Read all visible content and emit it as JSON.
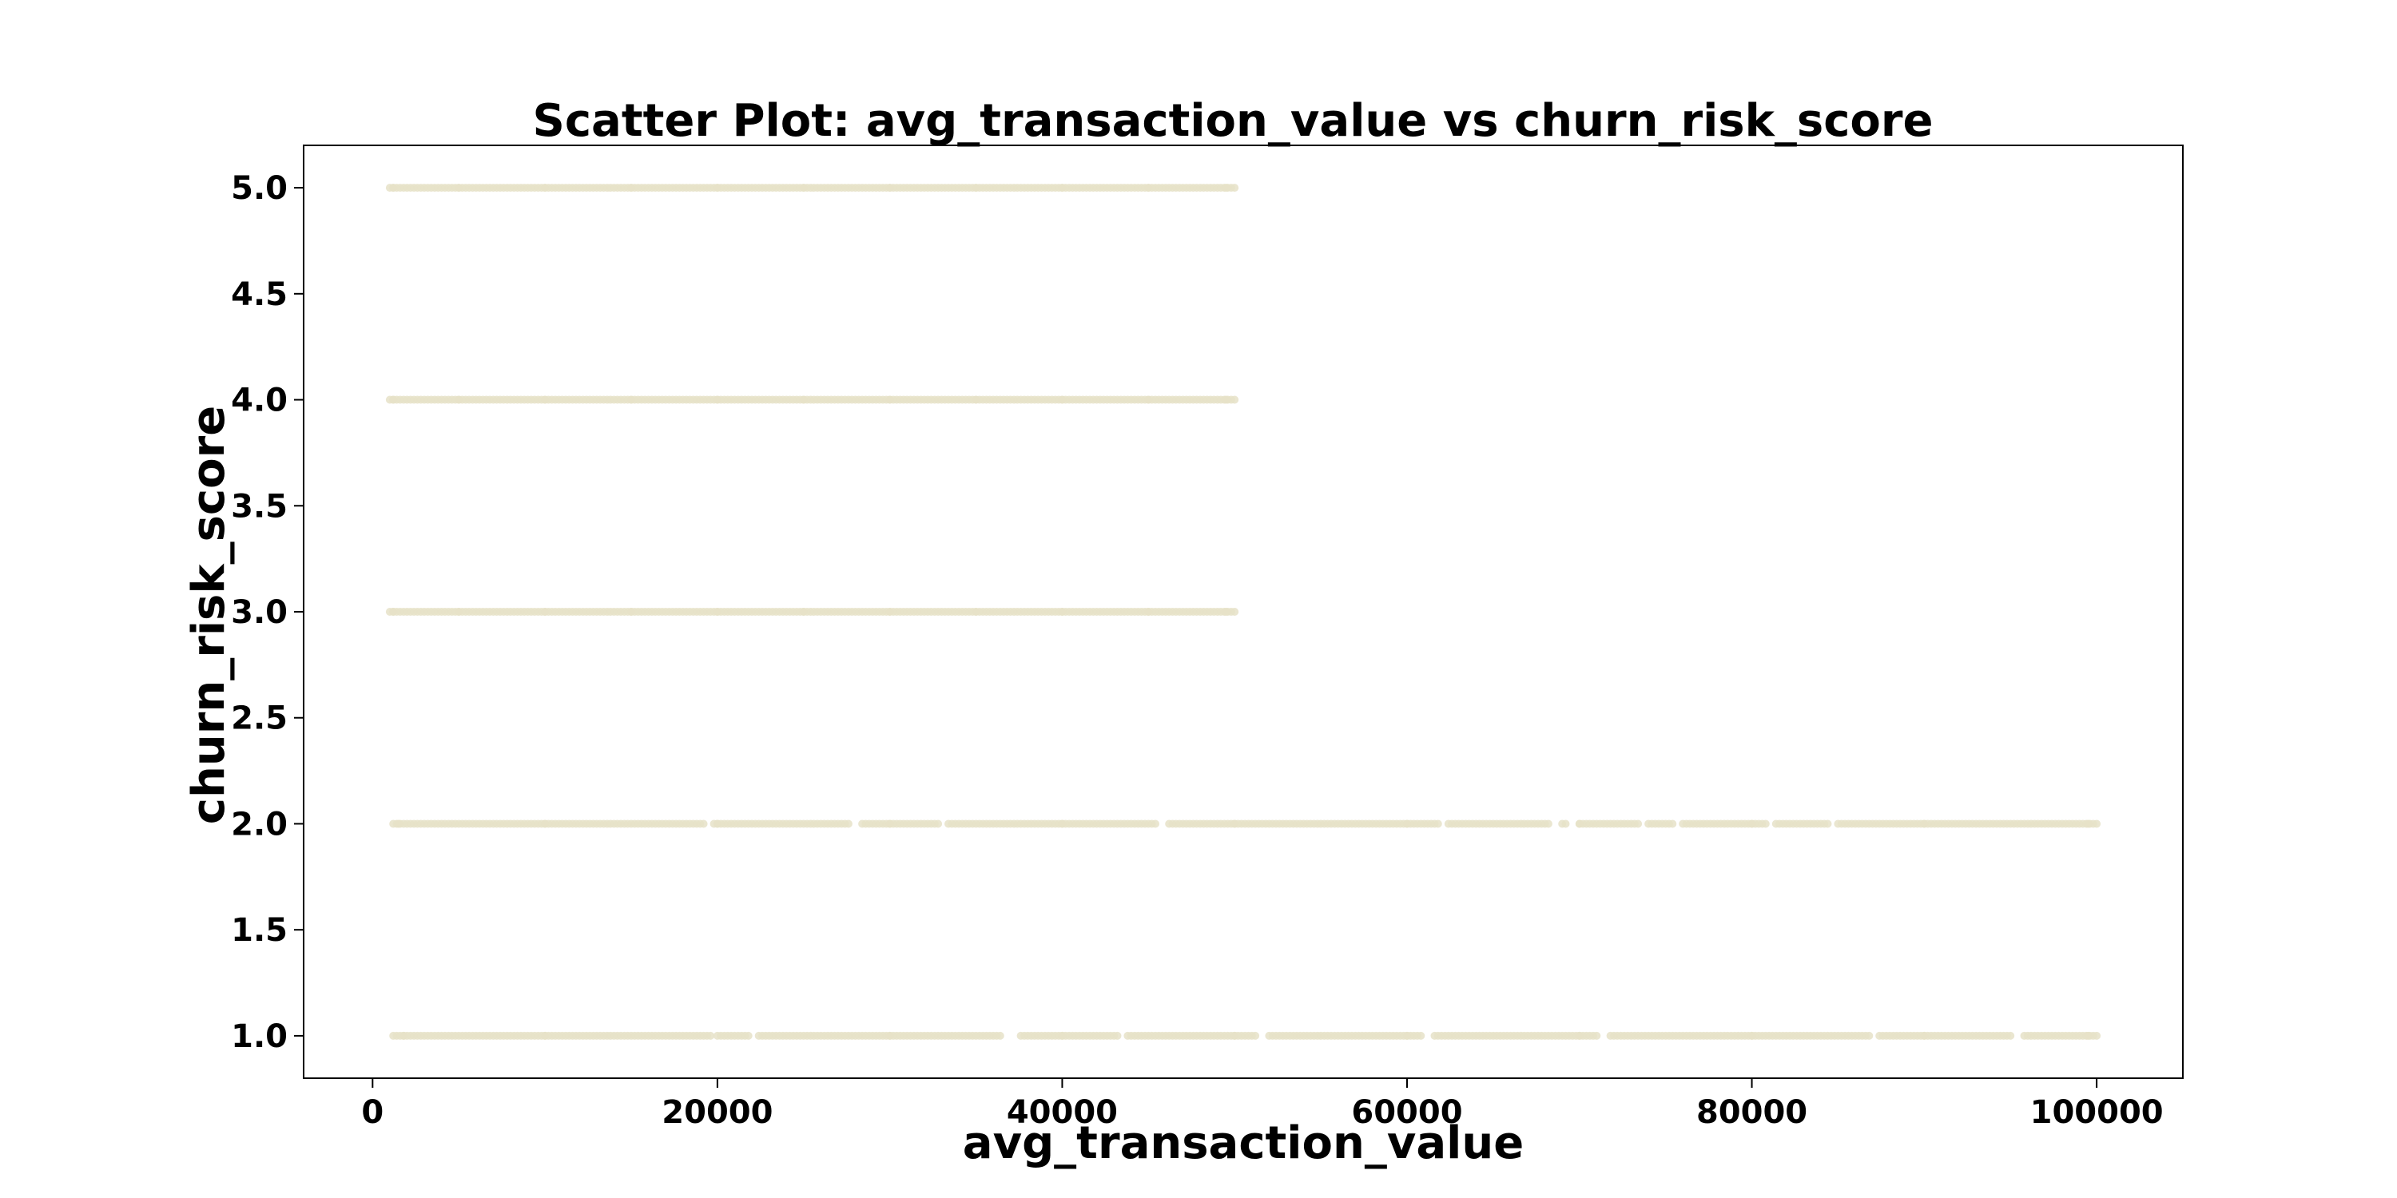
{
  "chart_data": {
    "type": "scatter",
    "title": "Scatter Plot: avg_transaction_value vs churn_risk_score",
    "xlabel": "avg_transaction_value",
    "ylabel": "churn_risk_score",
    "xlim": [
      -4000,
      105000
    ],
    "ylim": [
      0.8,
      5.2
    ],
    "xticks": [
      0,
      20000,
      40000,
      60000,
      80000,
      100000
    ],
    "xtick_labels": [
      "0",
      "20000",
      "40000",
      "60000",
      "80000",
      "100000"
    ],
    "yticks": [
      1.0,
      1.5,
      2.0,
      2.5,
      3.0,
      3.5,
      4.0,
      4.5,
      5.0
    ],
    "ytick_labels": [
      "1.0",
      "1.5",
      "2.0",
      "2.5",
      "3.0",
      "3.5",
      "4.0",
      "4.5",
      "5.0"
    ],
    "grid": false,
    "legend": false,
    "point_color": "#e6e2c8",
    "series": [
      {
        "points": [
          {
            "x": 1200,
            "y": 5.0
          },
          {
            "x": 5000,
            "y": 5.0
          },
          {
            "x": 10000,
            "y": 5.0
          },
          {
            "x": 15000,
            "y": 5.0
          },
          {
            "x": 20000,
            "y": 5.0
          },
          {
            "x": 25000,
            "y": 5.0
          },
          {
            "x": 30000,
            "y": 5.0
          },
          {
            "x": 35000,
            "y": 5.0
          },
          {
            "x": 40000,
            "y": 5.0
          },
          {
            "x": 45000,
            "y": 5.0
          },
          {
            "x": 49500,
            "y": 5.0
          },
          {
            "x": 1200,
            "y": 4.0
          },
          {
            "x": 5000,
            "y": 4.0
          },
          {
            "x": 10000,
            "y": 4.0
          },
          {
            "x": 15000,
            "y": 4.0
          },
          {
            "x": 20000,
            "y": 4.0
          },
          {
            "x": 25000,
            "y": 4.0
          },
          {
            "x": 30000,
            "y": 4.0
          },
          {
            "x": 35000,
            "y": 4.0
          },
          {
            "x": 40000,
            "y": 4.0
          },
          {
            "x": 45000,
            "y": 4.0
          },
          {
            "x": 49500,
            "y": 4.0
          },
          {
            "x": 1200,
            "y": 3.0
          },
          {
            "x": 5000,
            "y": 3.0
          },
          {
            "x": 10000,
            "y": 3.0
          },
          {
            "x": 15000,
            "y": 3.0
          },
          {
            "x": 20000,
            "y": 3.0
          },
          {
            "x": 25000,
            "y": 3.0
          },
          {
            "x": 30000,
            "y": 3.0
          },
          {
            "x": 35000,
            "y": 3.0
          },
          {
            "x": 40000,
            "y": 3.0
          },
          {
            "x": 45000,
            "y": 3.0
          },
          {
            "x": 49500,
            "y": 3.0
          },
          {
            "x": 1500,
            "y": 2.0
          },
          {
            "x": 10000,
            "y": 2.0
          },
          {
            "x": 20000,
            "y": 2.0
          },
          {
            "x": 30000,
            "y": 2.0
          },
          {
            "x": 40000,
            "y": 2.0
          },
          {
            "x": 50000,
            "y": 2.0
          },
          {
            "x": 60000,
            "y": 2.0
          },
          {
            "x": 70000,
            "y": 2.0
          },
          {
            "x": 80000,
            "y": 2.0
          },
          {
            "x": 90000,
            "y": 2.0
          },
          {
            "x": 99500,
            "y": 2.0
          },
          {
            "x": 1800,
            "y": 1.0
          },
          {
            "x": 10000,
            "y": 1.0
          },
          {
            "x": 20000,
            "y": 1.0
          },
          {
            "x": 30000,
            "y": 1.0
          },
          {
            "x": 40000,
            "y": 1.0
          },
          {
            "x": 50000,
            "y": 1.0
          },
          {
            "x": 60000,
            "y": 1.0
          },
          {
            "x": 70000,
            "y": 1.0
          },
          {
            "x": 80000,
            "y": 1.0
          },
          {
            "x": 90000,
            "y": 1.0
          },
          {
            "x": 99500,
            "y": 1.0
          }
        ],
        "bands": [
          {
            "y": 5.0,
            "x_min": 1000,
            "x_max": 50000,
            "gaps": []
          },
          {
            "y": 4.0,
            "x_min": 1000,
            "x_max": 50000,
            "gaps": []
          },
          {
            "y": 3.0,
            "x_min": 1000,
            "x_max": 50000,
            "gaps": []
          },
          {
            "y": 2.0,
            "x_min": 1200,
            "x_max": 100000,
            "gaps": [
              [
                19400,
                19700
              ],
              [
                27800,
                28200
              ],
              [
                33000,
                33300
              ],
              [
                45600,
                46000
              ],
              [
                62000,
                62300
              ],
              [
                68400,
                68800
              ],
              [
                69300,
                69800
              ],
              [
                73500,
                73800
              ],
              [
                75500,
                75800
              ],
              [
                81000,
                81300
              ],
              [
                84600,
                84900
              ]
            ]
          },
          {
            "y": 1.0,
            "x_min": 1200,
            "x_max": 100000,
            "gaps": [
              [
                19700,
                20000
              ],
              [
                22000,
                22300
              ],
              [
                36500,
                37400
              ],
              [
                43300,
                43700
              ],
              [
                51300,
                51800
              ],
              [
                61000,
                61400
              ],
              [
                71200,
                71700
              ],
              [
                87000,
                87300
              ],
              [
                95200,
                95600
              ]
            ]
          }
        ]
      }
    ]
  }
}
